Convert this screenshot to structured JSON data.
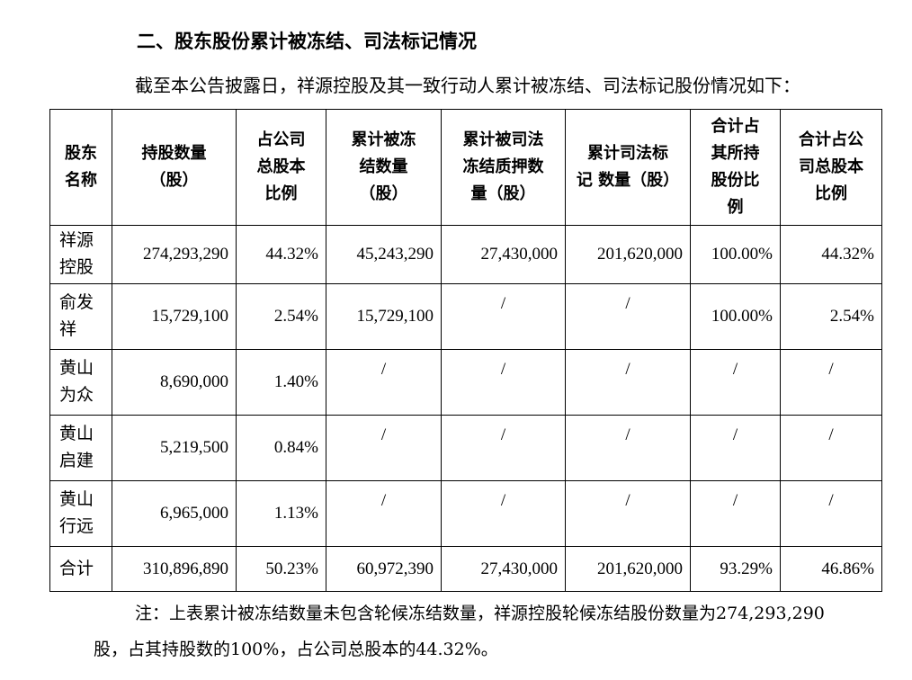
{
  "heading": "二、股东股份累计被冻结、司法标记情况",
  "intro": "截至本公告披露日，祥源控股及其一致行动人累计被冻结、司法标记股份情况如下：",
  "table": {
    "headers": [
      [
        "股东",
        "名称"
      ],
      [
        "持股数量",
        "（股）"
      ],
      [
        "占公司",
        "总股本",
        "比例"
      ],
      [
        "累计被冻",
        "结数量",
        "（股）"
      ],
      [
        "累计被司法",
        "冻结质押数",
        "量（股）"
      ],
      [
        "累计司法标",
        "记 数量（股）"
      ],
      [
        "合计占",
        "其所持",
        "股份比",
        "例"
      ],
      [
        "合计占公",
        "司总股本",
        "比例"
      ]
    ],
    "rows": [
      {
        "name": [
          "祥源",
          "控股"
        ],
        "cells": [
          "274,293,290",
          "44.32%",
          "45,243,290",
          "27,430,000",
          "201,620,000",
          "100.00%",
          "44.32%"
        ]
      },
      {
        "name": [
          "俞发",
          "祥"
        ],
        "cells": [
          "15,729,100",
          "2.54%",
          "15,729,100",
          "/",
          "/",
          "100.00%",
          "2.54%"
        ]
      },
      {
        "name": [
          "黄山",
          "为众"
        ],
        "cells": [
          "8,690,000",
          "1.40%",
          "/",
          "/",
          "/",
          "/",
          "/"
        ]
      },
      {
        "name": [
          "黄山",
          "启建"
        ],
        "cells": [
          "5,219,500",
          "0.84%",
          "/",
          "/",
          "/",
          "/",
          "/"
        ]
      },
      {
        "name": [
          "黄山",
          "行远"
        ],
        "cells": [
          "6,965,000",
          "1.13%",
          "/",
          "/",
          "/",
          "/",
          "/"
        ]
      }
    ],
    "total": {
      "name": "合计",
      "cells": [
        "310,896,890",
        "50.23%",
        "60,972,390",
        "27,430,000",
        "201,620,000",
        "93.29%",
        "46.86%"
      ]
    }
  },
  "note": "注：上表累计被冻结数量未包含轮候冻结数量，祥源控股轮候冻结股份数量为274,293,290股，占其持股数的100%，占公司总股本的44.32%。"
}
